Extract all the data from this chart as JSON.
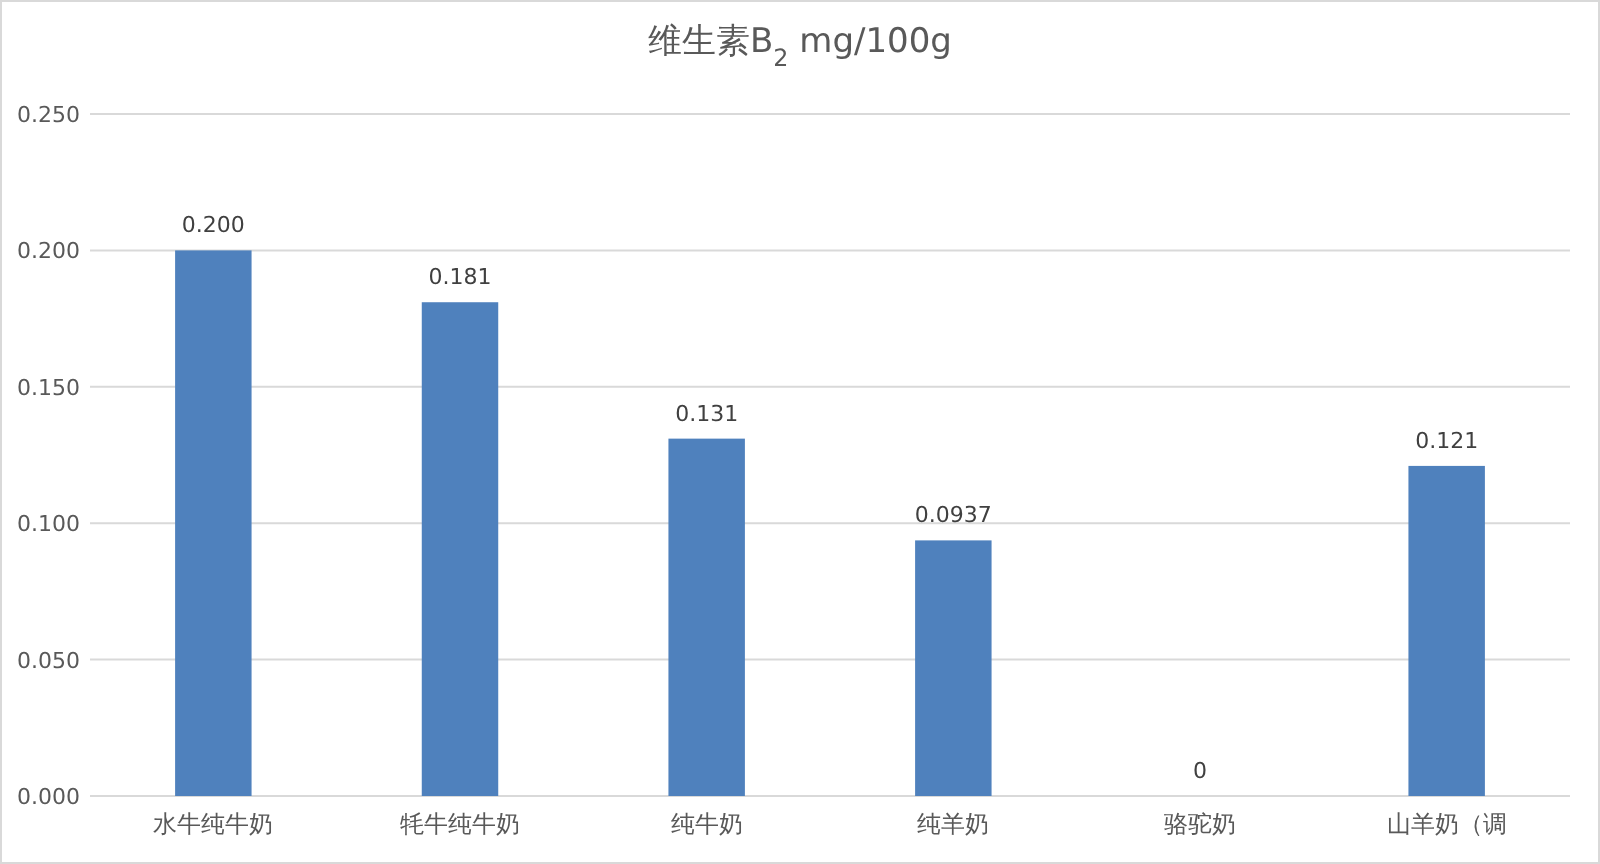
{
  "chart_data": {
    "type": "bar",
    "title": "维生素B$_{2}$ mg/100g",
    "categories": [
      "水牛纯牛奶",
      "牦牛纯牛奶",
      "纯牛奶",
      "纯羊奶",
      "骆驼奶",
      "山羊奶（调"
    ],
    "values": [
      0.2,
      0.181,
      0.131,
      0.0937,
      0,
      0.121
    ],
    "value_labels": [
      "0.200",
      "0.181",
      "0.131",
      "0.0937",
      "0",
      "0.121"
    ],
    "color": "#4f81bd",
    "ylim": [
      0,
      0.25
    ],
    "yticks": [
      {
        "value": 0,
        "label": "0.000"
      },
      {
        "value": 0.05,
        "label": "0.050"
      },
      {
        "value": 0.1,
        "label": "0.100"
      },
      {
        "value": 0.15,
        "label": "0.150"
      },
      {
        "value": 0.2,
        "label": "0.200"
      },
      {
        "value": 0.25,
        "label": "0.250"
      }
    ],
    "grid": "y"
  }
}
